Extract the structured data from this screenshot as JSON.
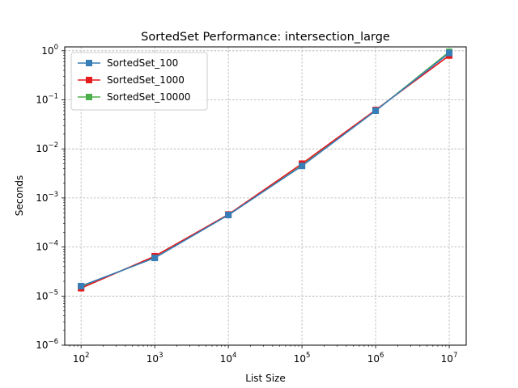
{
  "chart_data": {
    "type": "line",
    "title": "SortedSet Performance: intersection_large",
    "xlabel": "List Size",
    "ylabel": "Seconds",
    "xscale": "log",
    "yscale": "log",
    "xlim": [
      60,
      17000000
    ],
    "ylim": [
      1e-06,
      1.2
    ],
    "grid": true,
    "legend_position": "top-left",
    "x_ticks": [
      {
        "value": 100,
        "base": "10",
        "exp": "2"
      },
      {
        "value": 1000,
        "base": "10",
        "exp": "3"
      },
      {
        "value": 10000,
        "base": "10",
        "exp": "4"
      },
      {
        "value": 100000,
        "base": "10",
        "exp": "5"
      },
      {
        "value": 1000000,
        "base": "10",
        "exp": "6"
      },
      {
        "value": 10000000,
        "base": "10",
        "exp": "7"
      }
    ],
    "y_ticks": [
      {
        "value": 1e-06,
        "base": "10",
        "exp": "−6"
      },
      {
        "value": 1e-05,
        "base": "10",
        "exp": "−5"
      },
      {
        "value": 0.0001,
        "base": "10",
        "exp": "−4"
      },
      {
        "value": 0.001,
        "base": "10",
        "exp": "−3"
      },
      {
        "value": 0.01,
        "base": "10",
        "exp": "−2"
      },
      {
        "value": 0.1,
        "base": "10",
        "exp": "−1"
      },
      {
        "value": 1,
        "base": "10",
        "exp": "0"
      }
    ],
    "x": [
      100,
      1000,
      10000,
      100000,
      1000000,
      10000000
    ],
    "series": [
      {
        "name": "SortedSet_100",
        "color": "#377eb8",
        "marker": "square",
        "values": [
          1.6e-05,
          6e-05,
          0.00045,
          0.0045,
          0.06,
          0.9
        ]
      },
      {
        "name": "SortedSet_1000",
        "color": "#e41a1c",
        "marker": "square",
        "values": [
          1.45e-05,
          6.5e-05,
          0.00046,
          0.005,
          0.062,
          0.8
        ]
      },
      {
        "name": "SortedSet_10000",
        "color": "#4daf4a",
        "marker": "square",
        "values": [
          1.55e-05,
          6.1e-05,
          0.00045,
          0.0046,
          0.06,
          0.95
        ]
      }
    ]
  }
}
